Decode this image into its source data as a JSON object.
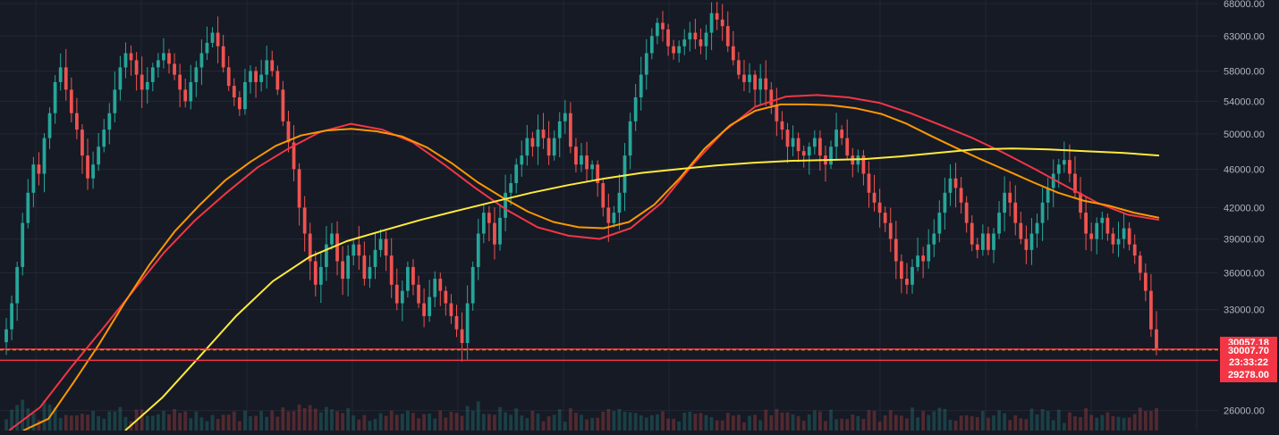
{
  "colors": {
    "background": "#161a25",
    "grid": "#232734",
    "up": "#26a69a",
    "down": "#ef5350",
    "ma_red": "#f23645",
    "ma_orange": "#ff9800",
    "ma_yellow": "#ffeb3b",
    "axis_text": "#b2b5be",
    "tag_red": "#f23645"
  },
  "price_axis": {
    "ticks": [
      "68000.00",
      "63000.00",
      "58000.00",
      "54000.00",
      "50000.00",
      "46000.00",
      "42000.00",
      "39000.00",
      "36000.00",
      "33000.00",
      "26000.00"
    ]
  },
  "tags": {
    "high": "30057.18",
    "current": "30007.70",
    "countdown": "23:33:22",
    "low": "29278.00"
  },
  "chart_data": {
    "type": "line",
    "ylim": [
      24800,
      68600
    ],
    "scale": "log",
    "grid": true,
    "price_closes": [
      31500,
      33500,
      36500,
      40500,
      43500,
      46500,
      45500,
      49500,
      52500,
      56500,
      58500,
      55500,
      52500,
      50500,
      47500,
      45000,
      46500,
      48500,
      50500,
      52500,
      55500,
      58500,
      60500,
      59500,
      57500,
      55500,
      56500,
      58500,
      59500,
      60500,
      59000,
      57500,
      55500,
      54000,
      56500,
      58500,
      60500,
      62000,
      63500,
      61500,
      58500,
      56000,
      54500,
      53000,
      56500,
      58000,
      56500,
      57500,
      59500,
      58000,
      55500,
      51500,
      49000,
      46000,
      42000,
      39500,
      37000,
      35000,
      36500,
      38500,
      39500,
      37000,
      35500,
      37500,
      38500,
      37500,
      35500,
      36500,
      38000,
      39000,
      37500,
      35000,
      33500,
      34500,
      36500,
      35000,
      33500,
      32500,
      34000,
      35500,
      34500,
      33500,
      32500,
      31500,
      30500,
      33500,
      36500,
      39500,
      41500,
      40500,
      38500,
      41000,
      43500,
      44500,
      46500,
      47500,
      49500,
      48500,
      50500,
      49500,
      47500,
      49500,
      51500,
      52500,
      48500,
      46500,
      47500,
      46000,
      46500,
      44500,
      42000,
      40500,
      41500,
      43500,
      47500,
      51500,
      54500,
      57500,
      60500,
      63000,
      65000,
      64000,
      61500,
      60500,
      61500,
      62500,
      63500,
      62500,
      61500,
      63500,
      66500,
      65500,
      64500,
      61500,
      59500,
      57500,
      56500,
      57500,
      55500,
      57000,
      55500,
      53500,
      51500,
      50500,
      48500,
      49500,
      48000,
      47500,
      48500,
      49500,
      47500,
      46500,
      48500,
      50500,
      49500,
      47500,
      46500,
      47500,
      45500,
      43500,
      42500,
      41500,
      40500,
      39000,
      37000,
      35500,
      35000,
      36500,
      37500,
      37000,
      38500,
      39500,
      41500,
      43500,
      45000,
      44000,
      42500,
      40500,
      38500,
      38000,
      39500,
      38000,
      39500,
      41500,
      43500,
      42500,
      40500,
      39000,
      38000,
      39500,
      40500,
      42500,
      44000,
      45500,
      46500,
      47000,
      45500,
      43500,
      41500,
      39500,
      39000,
      40500,
      41000,
      39500,
      38500,
      39000,
      40000,
      38500,
      37500,
      36000,
      34500,
      31500,
      30007.7
    ],
    "wicks": {
      "high": [
        69000,
        68500
      ],
      "low_extremes": [
        29278,
        30057.18
      ]
    },
    "series": [
      {
        "values": [
          24800,
          26200,
          28800,
          31500,
          34500,
          37800,
          40800,
          43500,
          46200,
          48300,
          50200,
          51200,
          50500,
          49000,
          46500,
          44000,
          41800,
          40100,
          39300,
          39000,
          40000,
          42500,
          46500,
          50300,
          53300,
          54600,
          54800,
          54500,
          53800,
          52500,
          51000,
          49500,
          47800,
          46000,
          44200,
          42500,
          41300,
          40800
        ]
      },
      {
        "values": [
          24800,
          25500,
          27800,
          30400,
          33500,
          36700,
          39700,
          42300,
          44800,
          46800,
          48600,
          49800,
          50400,
          50600,
          50300,
          49700,
          48400,
          46600,
          44600,
          43000,
          41600,
          40600,
          40100,
          40000,
          40600,
          42300,
          45000,
          48300,
          51000,
          52800,
          53600,
          53600,
          53500,
          53100,
          52400,
          51200,
          49700,
          48300,
          47000,
          45800,
          44600,
          43500,
          42700,
          42200,
          41500,
          41000
        ]
      },
      {
        "values": [
          24800,
          26800,
          29500,
          32500,
          35300,
          37400,
          38800,
          39800,
          40800,
          41700,
          42600,
          43500,
          44300,
          45000,
          45600,
          46000,
          46400,
          46700,
          46900,
          47000,
          47100,
          47400,
          47800,
          48200,
          48300,
          48200,
          48000,
          47800,
          47500
        ]
      }
    ]
  }
}
